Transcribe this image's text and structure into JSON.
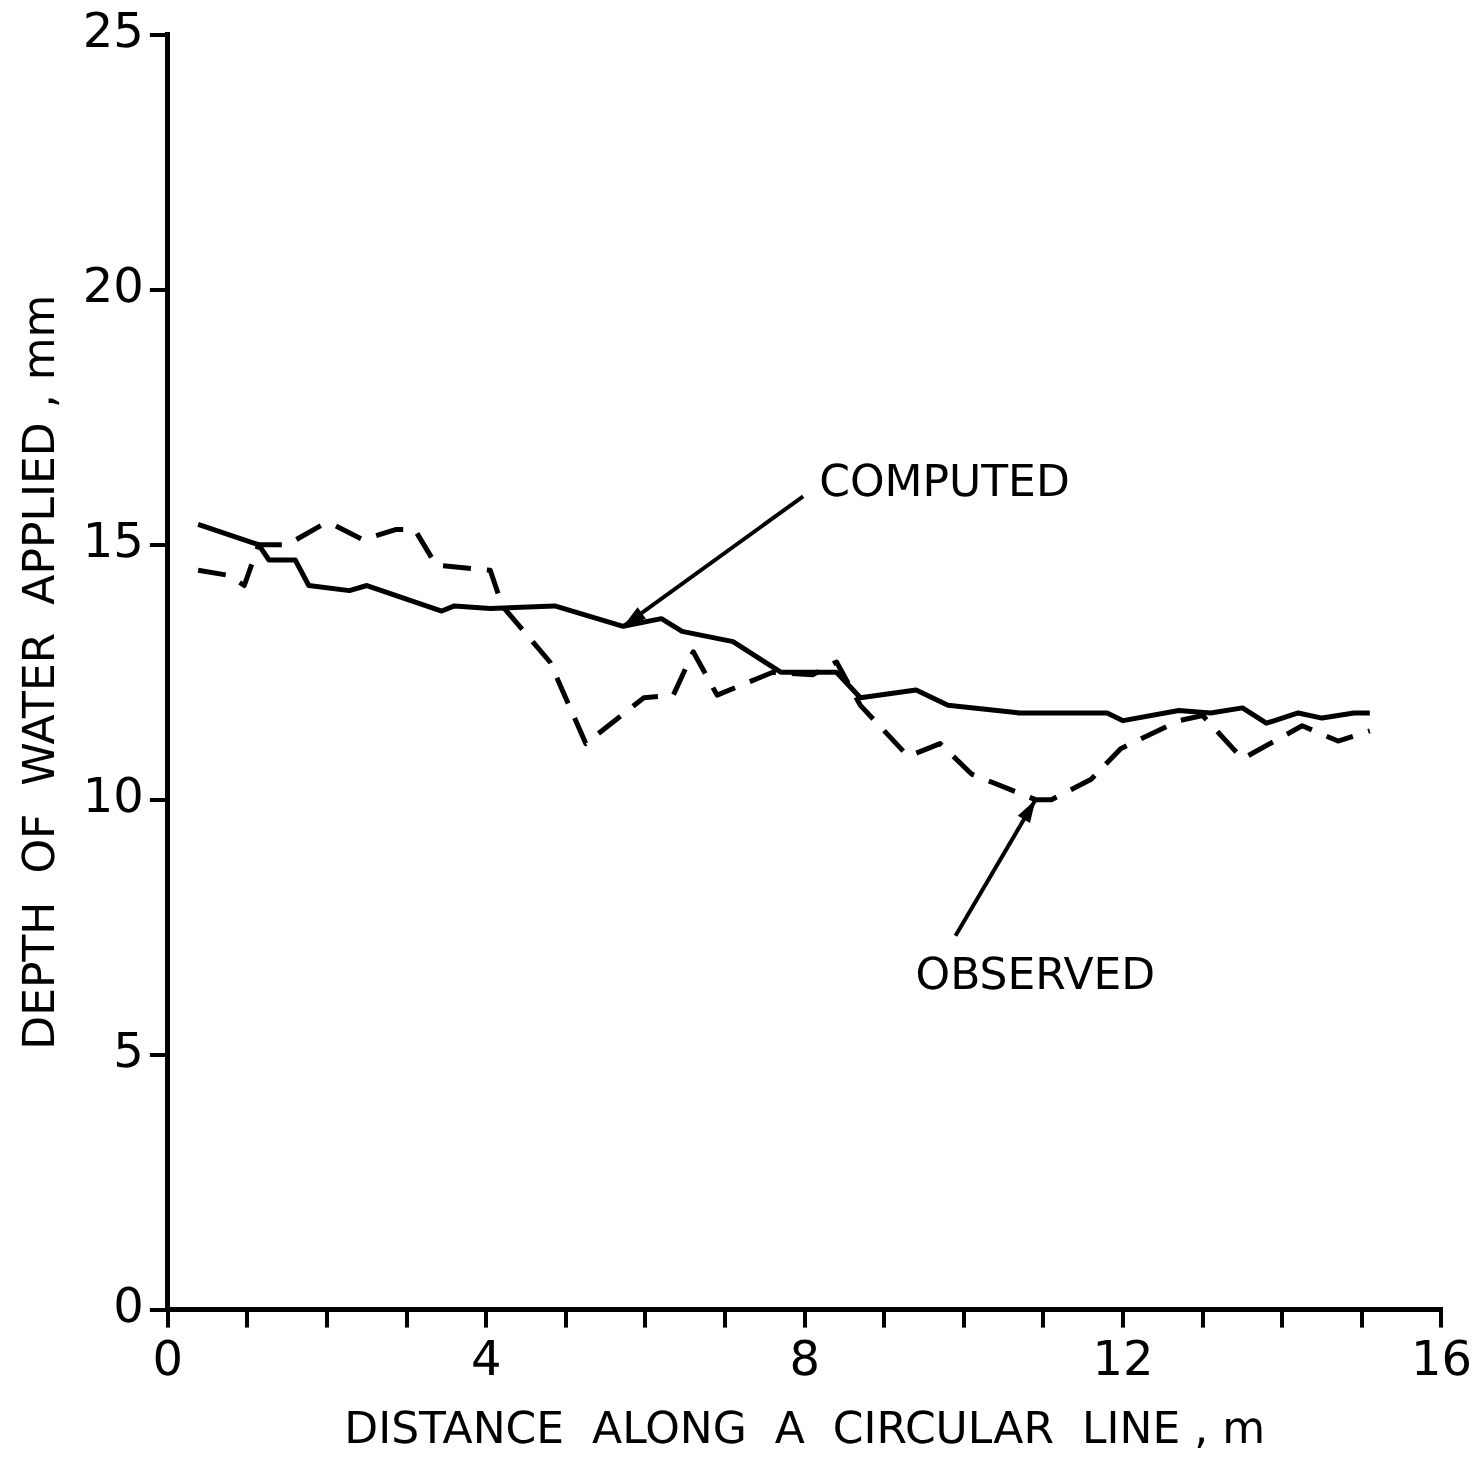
{
  "chart_data": {
    "type": "line",
    "xlabel": "DISTANCE  ALONG  A  CIRCULAR  LINE , m",
    "ylabel": "DEPTH  OF  WATER  APPLIED , mm",
    "xlim": [
      0,
      16
    ],
    "ylim": [
      0,
      25
    ],
    "xticks": [
      0,
      {
        "value": 1,
        "label": null
      },
      {
        "value": 2,
        "label": null
      },
      {
        "value": 3,
        "label": null
      },
      4,
      {
        "value": 5,
        "label": null
      },
      {
        "value": 6,
        "label": null
      },
      {
        "value": 7,
        "label": null
      },
      8,
      {
        "value": 9,
        "label": null
      },
      {
        "value": 10,
        "label": null
      },
      {
        "value": 11,
        "label": null
      },
      12,
      {
        "value": 13,
        "label": null
      },
      {
        "value": 14,
        "label": null
      },
      {
        "value": 15,
        "label": null
      },
      16
    ],
    "yticks": [
      0,
      5,
      10,
      15,
      20,
      25
    ],
    "grid": false,
    "legend": false,
    "marker": "none",
    "series": [
      {
        "color": "#000000",
        "line_style": "solid",
        "x": [
          0.38,
          1.14,
          1.27,
          1.6,
          1.77,
          2.28,
          2.5,
          3.44,
          3.6,
          4.05,
          4.86,
          5.72,
          6.2,
          6.46,
          7.1,
          7.7,
          8.1,
          8.4,
          8.7,
          9.4,
          9.8,
          10.7,
          11.8,
          12.0,
          12.7,
          13.1,
          13.5,
          13.8,
          14.2,
          14.5,
          14.9,
          15.1
        ],
        "values": [
          15.4,
          15.0,
          14.7,
          14.7,
          14.2,
          14.1,
          14.2,
          13.7,
          13.8,
          13.75,
          13.8,
          13.4,
          13.55,
          13.3,
          13.1,
          12.5,
          12.5,
          12.5,
          12.0,
          12.15,
          11.85,
          11.7,
          11.7,
          11.55,
          11.75,
          11.7,
          11.8,
          11.5,
          11.7,
          11.6,
          11.7,
          11.7
        ]
      },
      {
        "color": "#000000",
        "line_style": "dashed",
        "x": [
          0.38,
          0.76,
          0.96,
          1.14,
          1.5,
          1.95,
          2.07,
          2.45,
          2.87,
          3.1,
          3.37,
          4.05,
          4.2,
          4.8,
          5.25,
          5.98,
          6.35,
          6.6,
          6.9,
          7.6,
          8.1,
          8.4,
          8.7,
          9.3,
          9.7,
          10.1,
          10.9,
          11.1,
          11.6,
          11.97,
          12.7,
          13.0,
          13.5,
          14.25,
          14.7,
          15.1
        ],
        "values": [
          14.5,
          14.4,
          14.2,
          15.0,
          15.0,
          15.4,
          15.4,
          15.1,
          15.3,
          15.3,
          14.6,
          14.5,
          13.8,
          12.7,
          11.1,
          12.0,
          12.05,
          12.9,
          12.05,
          12.5,
          12.45,
          12.7,
          11.85,
          10.85,
          11.1,
          10.5,
          10.0,
          10.0,
          10.4,
          11.0,
          11.55,
          11.65,
          10.8,
          11.45,
          11.15,
          11.35
        ]
      }
    ],
    "annotations": [
      {
        "text": "COMPUTED",
        "x": 5.72,
        "y": 13.4
      },
      {
        "text": "OBSERVED",
        "x": 10.9,
        "y": 10.0
      }
    ]
  }
}
